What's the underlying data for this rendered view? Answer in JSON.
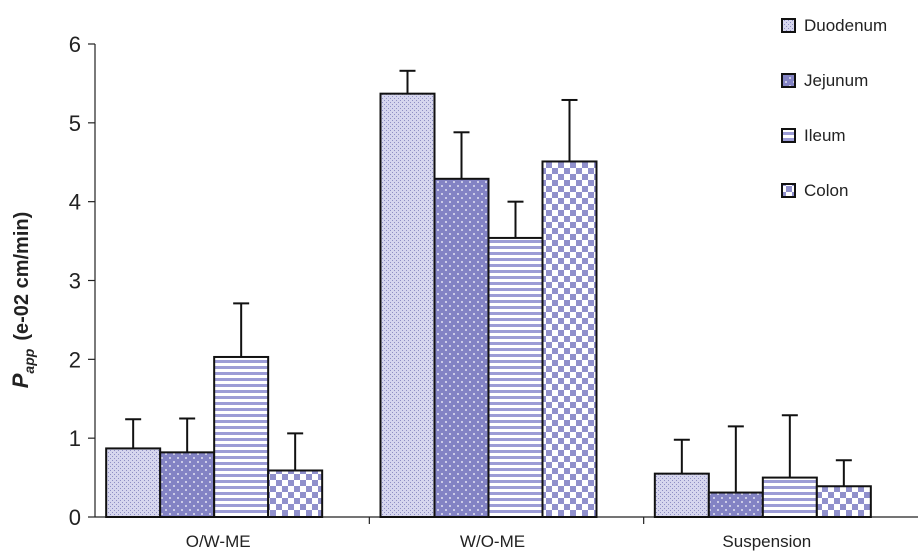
{
  "chart_data": {
    "type": "bar",
    "categories": [
      "O/W-ME",
      "W/O-ME",
      "Suspension"
    ],
    "series": [
      {
        "name": "Duodenum",
        "values": [
          0.87,
          5.37,
          0.55
        ],
        "errors": [
          0.37,
          0.29,
          0.43
        ],
        "color": "#c7c7e8",
        "pattern": "fine-dots"
      },
      {
        "name": "Jejunum",
        "values": [
          0.82,
          4.29,
          0.31
        ],
        "errors": [
          0.43,
          0.59,
          0.84
        ],
        "color": "#8b8bc9",
        "pattern": "white-dots"
      },
      {
        "name": "Ileum",
        "values": [
          2.03,
          3.54,
          0.5
        ],
        "errors": [
          0.68,
          0.46,
          0.79
        ],
        "color": "#a6a6d9",
        "pattern": "horizontal-stripes"
      },
      {
        "name": "Colon",
        "values": [
          0.59,
          4.51,
          0.39
        ],
        "errors": [
          0.47,
          0.78,
          0.33
        ],
        "color": "#9a9ad2",
        "pattern": "checkerboard"
      }
    ],
    "y_label_main": "P",
    "y_label_sub": "app",
    "y_label_units": "(e-02 cm/min)",
    "xlabel": "",
    "ylim": [
      0,
      6
    ],
    "yticks": [
      "0",
      "1",
      "2",
      "3",
      "4",
      "5",
      "6"
    ],
    "grid": false,
    "legend_position": "top-right"
  }
}
